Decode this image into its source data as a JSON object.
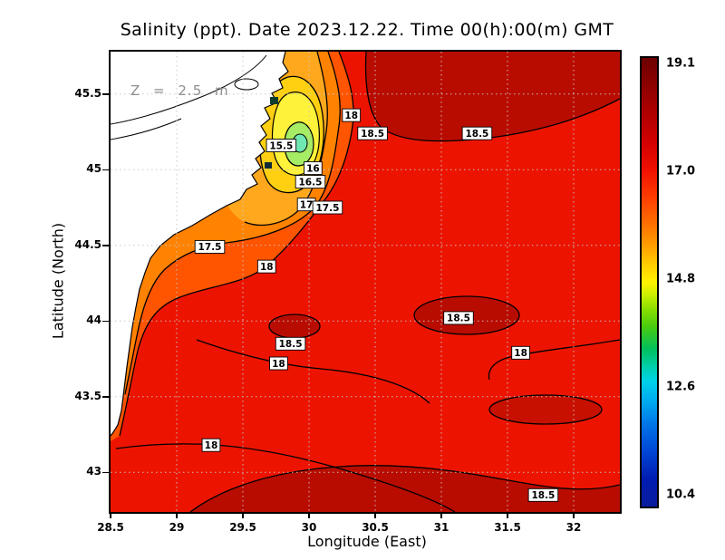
{
  "chart_data": {
    "type": "heatmap",
    "title": "Salinity (ppt). Date 2023.12.22. Time 00(h):00(m) GMT",
    "xlabel": "Longitude (East)",
    "ylabel": "Latitude (North)",
    "depth_annotation": "Z = 2.5 m",
    "xlim": [
      28.5,
      32.35
    ],
    "ylim": [
      42.74,
      45.78
    ],
    "x_ticks": [
      "28.5",
      "29",
      "29.5",
      "30",
      "30.5",
      "31",
      "31.5",
      "32"
    ],
    "y_ticks": [
      "45.5",
      "45",
      "44.5",
      "44",
      "43.5",
      "43"
    ],
    "grid": true,
    "colorbar": {
      "min": 10.4,
      "max": 19.1,
      "ticks": [
        "19.1",
        "17.0",
        "14.8",
        "12.6",
        "10.4"
      ],
      "palette_top_to_bottom": [
        "#6e0000",
        "#d40000",
        "#ff3c00",
        "#ffa000",
        "#fff200",
        "#46cc10",
        "#00cfae",
        "#00a6f0",
        "#0044d4",
        "#0a1c9e"
      ]
    },
    "contour_levels": [
      15.5,
      16,
      16.5,
      17,
      17.5,
      18,
      18.5
    ],
    "contour_labels": [
      {
        "value": "18",
        "lon": 30.32,
        "lat": 45.36
      },
      {
        "value": "18.5",
        "lon": 30.48,
        "lat": 45.24
      },
      {
        "value": "18.5",
        "lon": 31.27,
        "lat": 45.24
      },
      {
        "value": "15.5",
        "lon": 29.79,
        "lat": 45.16
      },
      {
        "value": "16",
        "lon": 30.03,
        "lat": 45.01
      },
      {
        "value": "16.5",
        "lon": 30.01,
        "lat": 44.92
      },
      {
        "value": "17",
        "lon": 29.98,
        "lat": 44.77
      },
      {
        "value": "17.5",
        "lon": 30.14,
        "lat": 44.75
      },
      {
        "value": "17.5",
        "lon": 29.25,
        "lat": 44.49
      },
      {
        "value": "18",
        "lon": 29.68,
        "lat": 44.36
      },
      {
        "value": "18.5",
        "lon": 31.13,
        "lat": 44.02
      },
      {
        "value": "18.5",
        "lon": 29.86,
        "lat": 43.85
      },
      {
        "value": "18",
        "lon": 29.77,
        "lat": 43.72
      },
      {
        "value": "18",
        "lon": 31.6,
        "lat": 43.79
      },
      {
        "value": "18",
        "lon": 29.26,
        "lat": 43.18
      },
      {
        "value": "18.5",
        "lon": 31.77,
        "lat": 42.85
      }
    ]
  }
}
